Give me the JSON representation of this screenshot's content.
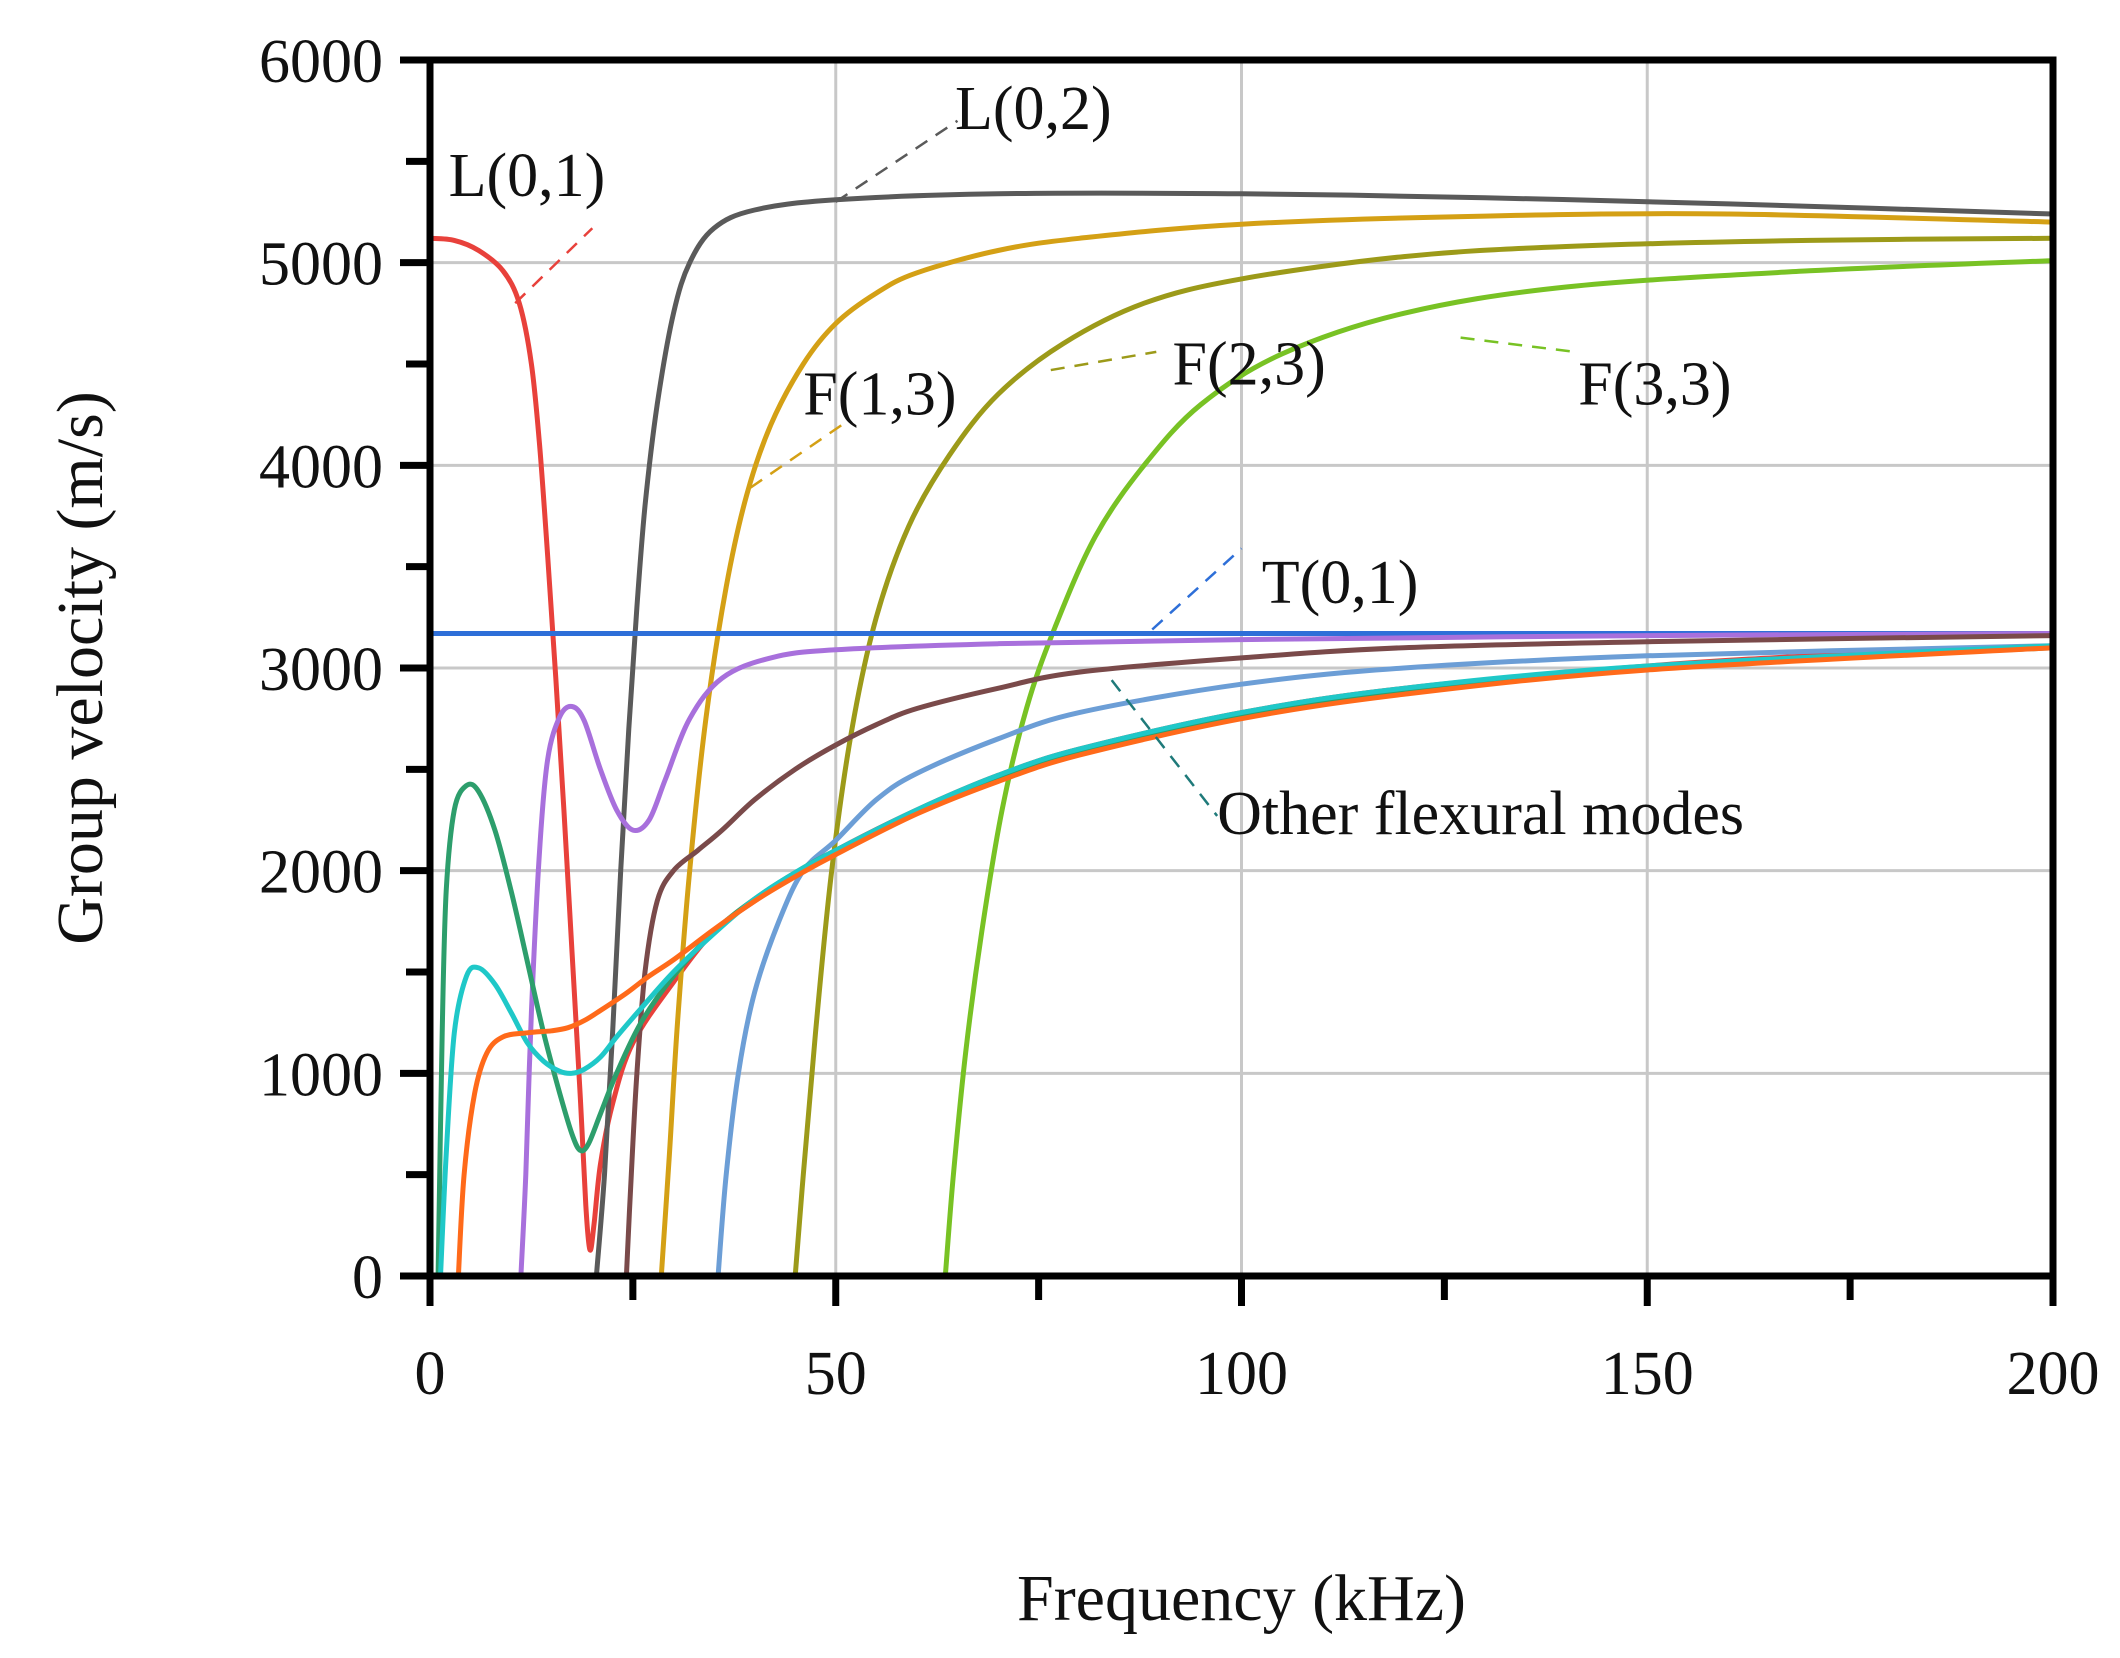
{
  "chart_data": {
    "type": "line",
    "title": "",
    "xlabel": "Frequency (kHz)",
    "ylabel": "Group velocity (m/s)",
    "xlim": [
      0,
      200
    ],
    "ylim": [
      0,
      6000
    ],
    "grid": true,
    "x_ticks": [
      0,
      50,
      100,
      150,
      200
    ],
    "x_tick_labels": [
      "0",
      "50",
      "100",
      "150",
      "200"
    ],
    "y_ticks": [
      0,
      1000,
      2000,
      3000,
      4000,
      5000,
      6000
    ],
    "y_tick_labels": [
      "0",
      "1000",
      "2000",
      "3000",
      "4000",
      "5000",
      "6000"
    ],
    "series": [
      {
        "name": "L(0,1)",
        "color": "#e8413b",
        "points": [
          [
            0,
            5120
          ],
          [
            3,
            5110
          ],
          [
            6,
            5060
          ],
          [
            9,
            4960
          ],
          [
            11,
            4800
          ],
          [
            12.5,
            4500
          ],
          [
            13.5,
            4100
          ],
          [
            14.5,
            3550
          ],
          [
            15.5,
            2950
          ],
          [
            16.5,
            2300
          ],
          [
            17.5,
            1600
          ],
          [
            18.5,
            900
          ],
          [
            19.2,
            350
          ],
          [
            19.7,
            130
          ],
          [
            20.2,
            250
          ],
          [
            21,
            550
          ],
          [
            22.5,
            850
          ],
          [
            25,
            1150
          ],
          [
            30,
            1450
          ],
          [
            35,
            1700
          ],
          [
            40,
            1850
          ],
          [
            45,
            1980
          ],
          [
            50,
            2100
          ],
          [
            60,
            2300
          ],
          [
            70,
            2470
          ],
          [
            80,
            2600
          ],
          [
            100,
            2780
          ],
          [
            120,
            2900
          ],
          [
            150,
            3010
          ],
          [
            175,
            3070
          ],
          [
            200,
            3110
          ]
        ]
      },
      {
        "name": "L(0,2)",
        "color": "#5a5a5a",
        "points": [
          [
            20.5,
            0
          ],
          [
            21.5,
            500
          ],
          [
            22.5,
            1200
          ],
          [
            23.5,
            2000
          ],
          [
            24.5,
            2700
          ],
          [
            25.5,
            3300
          ],
          [
            26.5,
            3800
          ],
          [
            28,
            4300
          ],
          [
            30,
            4750
          ],
          [
            32,
            5000
          ],
          [
            35,
            5170
          ],
          [
            40,
            5260
          ],
          [
            50,
            5310
          ],
          [
            70,
            5340
          ],
          [
            100,
            5340
          ],
          [
            130,
            5320
          ],
          [
            160,
            5290
          ],
          [
            200,
            5240
          ]
        ]
      },
      {
        "name": "F(1,3)",
        "color": "#d4a015",
        "points": [
          [
            28.5,
            0
          ],
          [
            29.5,
            600
          ],
          [
            30.5,
            1250
          ],
          [
            32,
            2000
          ],
          [
            34,
            2750
          ],
          [
            36.5,
            3400
          ],
          [
            39,
            3850
          ],
          [
            42,
            4200
          ],
          [
            46,
            4500
          ],
          [
            50,
            4700
          ],
          [
            55,
            4850
          ],
          [
            60,
            4950
          ],
          [
            70,
            5060
          ],
          [
            80,
            5120
          ],
          [
            100,
            5190
          ],
          [
            130,
            5230
          ],
          [
            160,
            5240
          ],
          [
            200,
            5200
          ]
        ]
      },
      {
        "name": "F(2,3)",
        "color": "#9c9a19",
        "points": [
          [
            45,
            0
          ],
          [
            46,
            500
          ],
          [
            47.5,
            1200
          ],
          [
            49.5,
            2000
          ],
          [
            52,
            2700
          ],
          [
            55,
            3250
          ],
          [
            59,
            3700
          ],
          [
            64,
            4050
          ],
          [
            70,
            4350
          ],
          [
            78,
            4600
          ],
          [
            88,
            4800
          ],
          [
            100,
            4920
          ],
          [
            120,
            5030
          ],
          [
            140,
            5080
          ],
          [
            170,
            5110
          ],
          [
            200,
            5120
          ]
        ]
      },
      {
        "name": "F(3,3)",
        "color": "#78c224",
        "points": [
          [
            63.5,
            0
          ],
          [
            64.5,
            500
          ],
          [
            66,
            1100
          ],
          [
            68,
            1700
          ],
          [
            70.5,
            2300
          ],
          [
            73.5,
            2800
          ],
          [
            77,
            3200
          ],
          [
            82,
            3650
          ],
          [
            88,
            4000
          ],
          [
            95,
            4300
          ],
          [
            105,
            4550
          ],
          [
            120,
            4750
          ],
          [
            140,
            4880
          ],
          [
            170,
            4960
          ],
          [
            200,
            5010
          ]
        ]
      },
      {
        "name": "T(0,1)",
        "color": "#2e6fd8",
        "points": [
          [
            0,
            3170
          ],
          [
            200,
            3170
          ]
        ]
      },
      {
        "name": "Purple flexural mode",
        "color": "#a870dc",
        "points": [
          [
            11.2,
            0
          ],
          [
            11.8,
            500
          ],
          [
            12.5,
            1300
          ],
          [
            13.5,
            2100
          ],
          [
            14.5,
            2550
          ],
          [
            16,
            2760
          ],
          [
            17.5,
            2810
          ],
          [
            19,
            2740
          ],
          [
            21,
            2500
          ],
          [
            23,
            2300
          ],
          [
            25,
            2200
          ],
          [
            27,
            2250
          ],
          [
            29,
            2450
          ],
          [
            32,
            2750
          ],
          [
            36,
            2950
          ],
          [
            42,
            3050
          ],
          [
            50,
            3090
          ],
          [
            70,
            3120
          ],
          [
            100,
            3140
          ],
          [
            150,
            3160
          ],
          [
            200,
            3170
          ]
        ]
      },
      {
        "name": "Brown flexural mode",
        "color": "#7a4a4a",
        "points": [
          [
            24.2,
            0
          ],
          [
            24.8,
            500
          ],
          [
            25.5,
            1000
          ],
          [
            26.5,
            1500
          ],
          [
            28,
            1850
          ],
          [
            30,
            2000
          ],
          [
            33,
            2100
          ],
          [
            36,
            2200
          ],
          [
            40,
            2350
          ],
          [
            45,
            2500
          ],
          [
            50,
            2620
          ],
          [
            55,
            2720
          ],
          [
            60,
            2800
          ],
          [
            70,
            2900
          ],
          [
            80,
            2980
          ],
          [
            100,
            3050
          ],
          [
            120,
            3100
          ],
          [
            150,
            3130
          ],
          [
            200,
            3160
          ]
        ]
      },
      {
        "name": "Blue-grey flexural mode",
        "color": "#6c9ed6",
        "points": [
          [
            35.5,
            0
          ],
          [
            36.5,
            500
          ],
          [
            38,
            1000
          ],
          [
            40,
            1400
          ],
          [
            43,
            1750
          ],
          [
            46,
            2000
          ],
          [
            50,
            2150
          ],
          [
            55,
            2350
          ],
          [
            60,
            2480
          ],
          [
            70,
            2650
          ],
          [
            80,
            2780
          ],
          [
            100,
            2920
          ],
          [
            120,
            3000
          ],
          [
            150,
            3060
          ],
          [
            200,
            3110
          ]
        ]
      },
      {
        "name": "Green flexural mode",
        "color": "#2d9e6c",
        "points": [
          [
            1,
            0
          ],
          [
            1.5,
            1200
          ],
          [
            2,
            1900
          ],
          [
            3,
            2300
          ],
          [
            4.5,
            2420
          ],
          [
            6,
            2390
          ],
          [
            8,
            2200
          ],
          [
            10,
            1900
          ],
          [
            12,
            1550
          ],
          [
            14,
            1200
          ],
          [
            16,
            900
          ],
          [
            17.5,
            700
          ],
          [
            18.5,
            620
          ],
          [
            19.5,
            650
          ],
          [
            21,
            800
          ],
          [
            23,
            1000
          ],
          [
            26,
            1250
          ],
          [
            30,
            1480
          ],
          [
            35,
            1700
          ],
          [
            40,
            1860
          ],
          [
            45,
            1990
          ],
          [
            50,
            2100
          ],
          [
            60,
            2290
          ],
          [
            70,
            2460
          ],
          [
            80,
            2590
          ],
          [
            100,
            2770
          ],
          [
            120,
            2890
          ],
          [
            150,
            3000
          ],
          [
            200,
            3100
          ]
        ]
      },
      {
        "name": "Cyan flexural mode",
        "color": "#1fc8c8",
        "points": [
          [
            1.3,
            0
          ],
          [
            2,
            600
          ],
          [
            3,
            1200
          ],
          [
            4.5,
            1480
          ],
          [
            6,
            1520
          ],
          [
            8,
            1440
          ],
          [
            10,
            1300
          ],
          [
            12,
            1150
          ],
          [
            14,
            1060
          ],
          [
            16,
            1010
          ],
          [
            17.5,
            1000
          ],
          [
            19,
            1020
          ],
          [
            21,
            1080
          ],
          [
            23,
            1180
          ],
          [
            26,
            1320
          ],
          [
            30,
            1500
          ],
          [
            35,
            1690
          ],
          [
            40,
            1860
          ],
          [
            45,
            1990
          ],
          [
            50,
            2100
          ],
          [
            60,
            2300
          ],
          [
            70,
            2470
          ],
          [
            80,
            2600
          ],
          [
            100,
            2780
          ],
          [
            120,
            2900
          ],
          [
            150,
            3010
          ],
          [
            200,
            3110
          ]
        ]
      },
      {
        "name": "Orange flexural mode",
        "color": "#ff6a1a",
        "points": [
          [
            3.5,
            0
          ],
          [
            4.2,
            500
          ],
          [
            5.5,
            900
          ],
          [
            7,
            1100
          ],
          [
            9,
            1180
          ],
          [
            12,
            1200
          ],
          [
            15,
            1210
          ],
          [
            17,
            1225
          ],
          [
            19,
            1260
          ],
          [
            21,
            1310
          ],
          [
            24,
            1390
          ],
          [
            27,
            1480
          ],
          [
            30,
            1560
          ],
          [
            35,
            1710
          ],
          [
            40,
            1850
          ],
          [
            45,
            1970
          ],
          [
            50,
            2080
          ],
          [
            60,
            2280
          ],
          [
            70,
            2440
          ],
          [
            80,
            2570
          ],
          [
            100,
            2750
          ],
          [
            120,
            2870
          ],
          [
            150,
            2990
          ],
          [
            200,
            3100
          ]
        ]
      }
    ],
    "annotations": [
      {
        "text": "L(0,1)",
        "color": "#e8413b",
        "line": [
          [
            10.5,
            4800
          ],
          [
            20,
            5170
          ]
        ],
        "label_at": [
          2.3,
          5330
        ],
        "anchor": "start"
      },
      {
        "text": "L(0,2)",
        "color": "#5a5a5a",
        "line": [
          [
            50,
            5300
          ],
          [
            65,
            5700
          ]
        ],
        "label_at": [
          64.7,
          5660
        ],
        "anchor": "start"
      },
      {
        "text": "F(1,3)",
        "color": "#d4a015",
        "line": [
          [
            39.5,
            3890
          ],
          [
            51.5,
            4220
          ]
        ],
        "label_at": [
          46,
          4250
        ],
        "anchor": "start"
      },
      {
        "text": "F(2,3)",
        "color": "#9c9a19",
        "line": [
          [
            76.5,
            4470
          ],
          [
            89.5,
            4560
          ]
        ],
        "label_at": [
          91.5,
          4400
        ],
        "anchor": "start"
      },
      {
        "text": "F(3,3)",
        "color": "#78c224",
        "line": [
          [
            127,
            4630
          ],
          [
            141,
            4560
          ]
        ],
        "label_at": [
          141.5,
          4300
        ],
        "anchor": "start"
      },
      {
        "text": "T(0,1)",
        "color": "#2e6fd8",
        "line": [
          [
            89,
            3190
          ],
          [
            100,
            3590
          ]
        ],
        "label_at": [
          102.5,
          3320
        ],
        "anchor": "start"
      },
      {
        "text": "Other flexural modes",
        "color": "#1f7a7a",
        "line": [
          [
            84,
            2940
          ],
          [
            97,
            2270
          ]
        ],
        "label_at": [
          97,
          2180
        ],
        "anchor": "start"
      }
    ]
  }
}
